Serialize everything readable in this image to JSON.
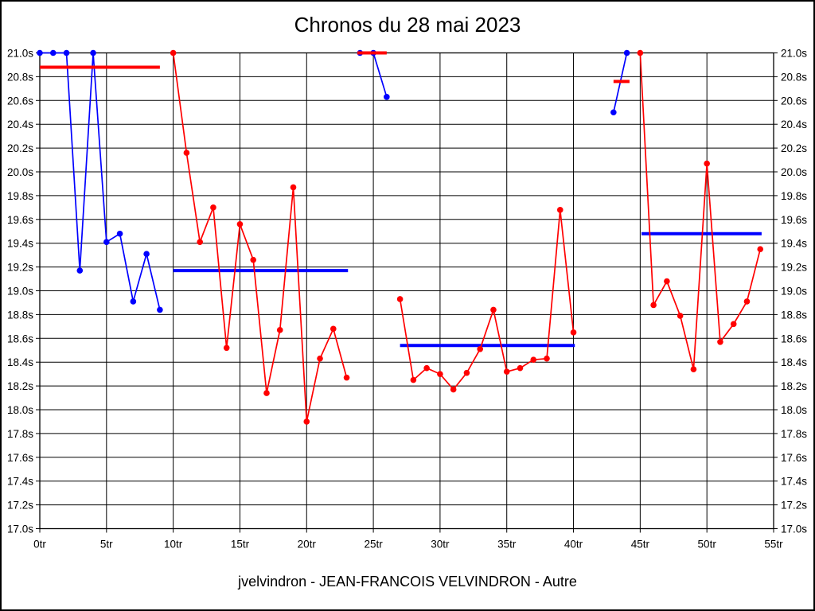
{
  "chart_data": {
    "type": "line",
    "title": "Chronos du 28 mai 2023",
    "footer": "jvelvindron - JEAN-FRANCOIS VELVINDRON - Autre",
    "x_unit": "tr",
    "y_unit": "s",
    "xlim": [
      0,
      55
    ],
    "x_tick_step": 5,
    "ylim": [
      17.0,
      21.0
    ],
    "y_tick_step": 0.2,
    "grid": true,
    "legend": "none",
    "colors": {
      "blue_series": "#0000ff",
      "red_series": "#ff0000",
      "grid": "#000000"
    },
    "series": [
      {
        "name": "stint-1",
        "color": "#0000ff",
        "x": [
          0,
          1,
          2,
          3,
          4,
          5,
          6,
          7,
          8,
          9
        ],
        "y": [
          21.0,
          21.0,
          21.0,
          19.17,
          21.0,
          19.41,
          19.48,
          18.91,
          19.31,
          18.84
        ]
      },
      {
        "name": "stint-2",
        "color": "#ff0000",
        "x": [
          10,
          11,
          12,
          13,
          14,
          15,
          16,
          17,
          18,
          19,
          20,
          21,
          22,
          23
        ],
        "y": [
          21.0,
          20.16,
          19.41,
          19.7,
          18.52,
          19.56,
          19.26,
          18.14,
          18.67,
          19.87,
          17.9,
          18.43,
          18.68,
          18.27
        ]
      },
      {
        "name": "stint-3",
        "color": "#0000ff",
        "x": [
          24,
          25,
          26
        ],
        "y": [
          21.0,
          21.0,
          20.63
        ]
      },
      {
        "name": "stint-4",
        "color": "#ff0000",
        "x": [
          27,
          28,
          29,
          30,
          31,
          32,
          33,
          34,
          35,
          36,
          37,
          38,
          39,
          40
        ],
        "y": [
          18.93,
          18.25,
          18.35,
          18.3,
          18.17,
          18.31,
          18.51,
          18.84,
          18.32,
          18.35,
          18.42,
          18.43,
          19.68,
          18.65
        ]
      },
      {
        "name": "stint-5",
        "color": "#0000ff",
        "x": [
          43,
          44
        ],
        "y": [
          20.5,
          21.0
        ]
      },
      {
        "name": "stint-6",
        "color": "#ff0000",
        "x": [
          45,
          46,
          47,
          48,
          49,
          50,
          51,
          52,
          53,
          54
        ],
        "y": [
          21.0,
          18.88,
          19.08,
          18.79,
          18.34,
          20.07,
          18.57,
          18.72,
          18.91,
          19.35
        ]
      }
    ],
    "avg_lines": [
      {
        "name": "avg-stint-1",
        "color": "#ff0000",
        "y": 20.88,
        "x_start": 0,
        "x_end": 9
      },
      {
        "name": "avg-stint-2",
        "color": "#0000ff",
        "y": 19.17,
        "x_start": 10,
        "x_end": 23.1
      },
      {
        "name": "avg-stint-3",
        "color": "#ff0000",
        "y": 21.0,
        "x_start": 23.8,
        "x_end": 26
      },
      {
        "name": "avg-stint-4",
        "color": "#0000ff",
        "y": 18.54,
        "x_start": 27,
        "x_end": 40.1
      },
      {
        "name": "avg-stint-5",
        "color": "#ff0000",
        "y": 20.76,
        "x_start": 43,
        "x_end": 44.2
      },
      {
        "name": "avg-stint-6",
        "color": "#0000ff",
        "y": 19.48,
        "x_start": 45.1,
        "x_end": 54.1
      }
    ]
  }
}
